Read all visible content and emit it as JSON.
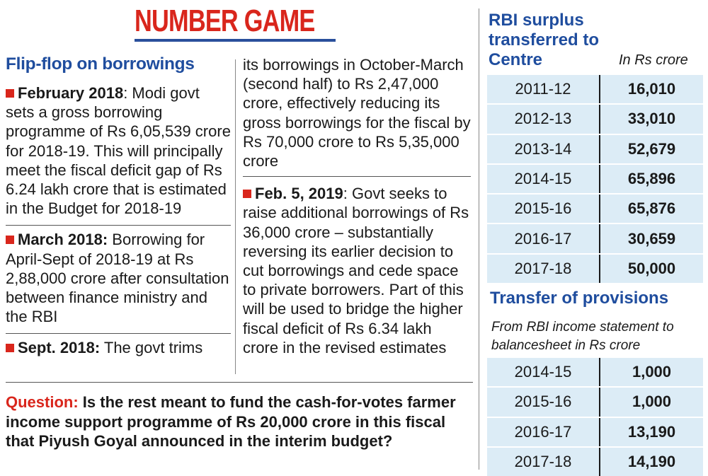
{
  "title": "NUMBER GAME",
  "left_heading": "Flip-flop on borrowings",
  "entries": [
    {
      "lede": "February 2018",
      "text": ": Modi govt sets a gross borrowing programme of Rs 6,05,539 crore for 2018-19. This will principally meet the fiscal deficit gap of Rs 6.24 lakh crore that is estimated in the Budget for 2018-19"
    },
    {
      "lede": "March 2018:",
      "text": " Borrowing for April-Sept of 2018-19 at Rs 2,88,000 crore after consultation between finance ministry and the RBI"
    },
    {
      "lede": "Sept. 2018:",
      "text": " The govt trims its borrowings in October-March (second half) to Rs 2,47,000 crore, effectively reducing its gross borrowings for the fiscal by Rs 70,000 crore to Rs 5,35,000 crore"
    },
    {
      "lede": "Feb. 5, 2019",
      "text": ": Govt seeks to raise additional borrowings of Rs 36,000 crore – substantially reversing its earlier decision to cut borrowings and cede space to private borrowers. Part of this will be used to bridge the higher fiscal deficit of Rs 6.34 lakh crore in the revised estimates"
    }
  ],
  "entry3_part1": " The govt trims",
  "entry3_part2": "its borrowings in October-March (second half) to Rs 2,47,000 crore, effectively reducing its gross borrowings for the fiscal by Rs 70,000 crore to Rs 5,35,000 crore",
  "question": {
    "label": "Question:",
    "text": " Is the rest meant to fund the cash-for-votes farmer income support programme of Rs 20,000 crore in this fiscal that Piyush Goyal announced in the interim budget?"
  },
  "rbi_surplus": {
    "heading": "RBI surplus transferred to Centre",
    "unit": "In Rs crore",
    "rows": [
      {
        "year": "2011-12",
        "value": "16,010"
      },
      {
        "year": "2012-13",
        "value": "33,010"
      },
      {
        "year": "2013-14",
        "value": "52,679"
      },
      {
        "year": "2014-15",
        "value": "65,896"
      },
      {
        "year": "2015-16",
        "value": "65,876"
      },
      {
        "year": "2016-17",
        "value": "30,659"
      },
      {
        "year": "2017-18",
        "value": "50,000"
      }
    ]
  },
  "provisions": {
    "heading": "Transfer of provisions",
    "unit": "From RBI income statement to balancesheet in Rs crore",
    "rows": [
      {
        "year": "2014-15",
        "value": "1,000"
      },
      {
        "year": "2015-16",
        "value": "1,000"
      },
      {
        "year": "2016-17",
        "value": "13,190"
      },
      {
        "year": "2017-18",
        "value": "14,190"
      }
    ]
  },
  "colors": {
    "accent_red": "#d9261c",
    "heading_blue": "#1f4d9e",
    "table_bg": "#dcecf6"
  }
}
